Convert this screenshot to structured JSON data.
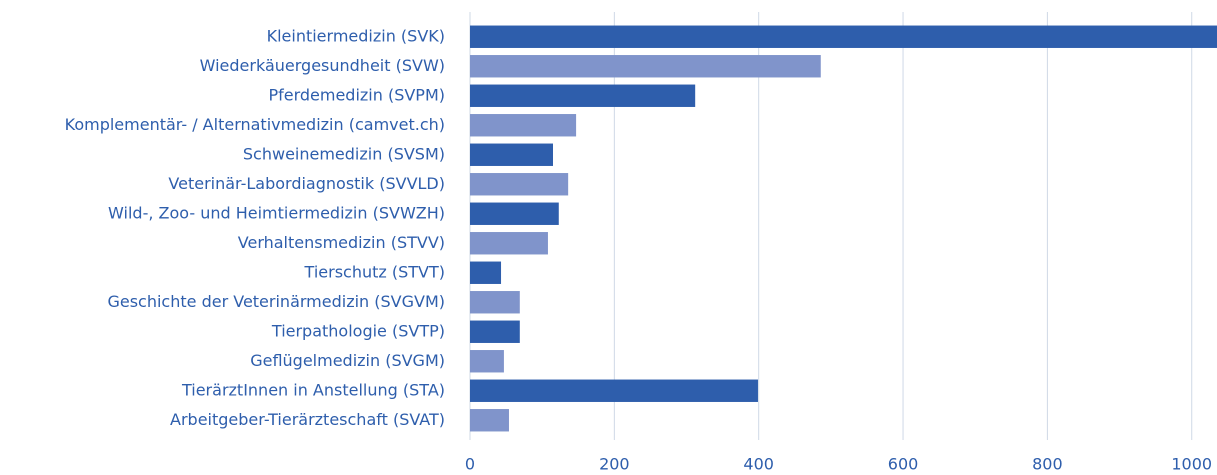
{
  "chart_data": {
    "type": "barh",
    "categories": [
      "Kleintiermedizin (SVK)",
      "Wiederkäuergesundheit (SVW)",
      "Pferdemedizin (SVPM)",
      "Komplementär- / Alternativmedizin (camvet.ch)",
      "Schweinemedizin (SVSM)",
      "Veterinär-Labordiagnostik (SVVLD)",
      "Wild-, Zoo- und Heimtiermedizin (SVWZH)",
      "Verhaltensmedizin (STVV)",
      "Tierschutz (STVT)",
      "Geschichte der Veterinärmedizin (SVGVM)",
      "Tierpathologie (SVTP)",
      "Geflügelmedizin (SVGM)",
      "TierärztInnen in Anstellung (STA)",
      "Arbeitgeber-Tierärzteschaft (SVAT)"
    ],
    "values": [
      1035,
      486,
      312,
      147,
      115,
      136,
      123,
      108,
      43,
      69,
      69,
      47,
      399,
      54
    ],
    "colors": [
      "#2e5eac",
      "#8094cb",
      "#2e5eac",
      "#8094cb",
      "#2e5eac",
      "#8094cb",
      "#2e5eac",
      "#8094cb",
      "#2e5eac",
      "#8094cb",
      "#2e5eac",
      "#8094cb",
      "#2e5eac",
      "#8094cb"
    ],
    "xlim": [
      0,
      1035
    ],
    "xticks": [
      0,
      200,
      400,
      600,
      800,
      1000
    ],
    "grid": true
  }
}
